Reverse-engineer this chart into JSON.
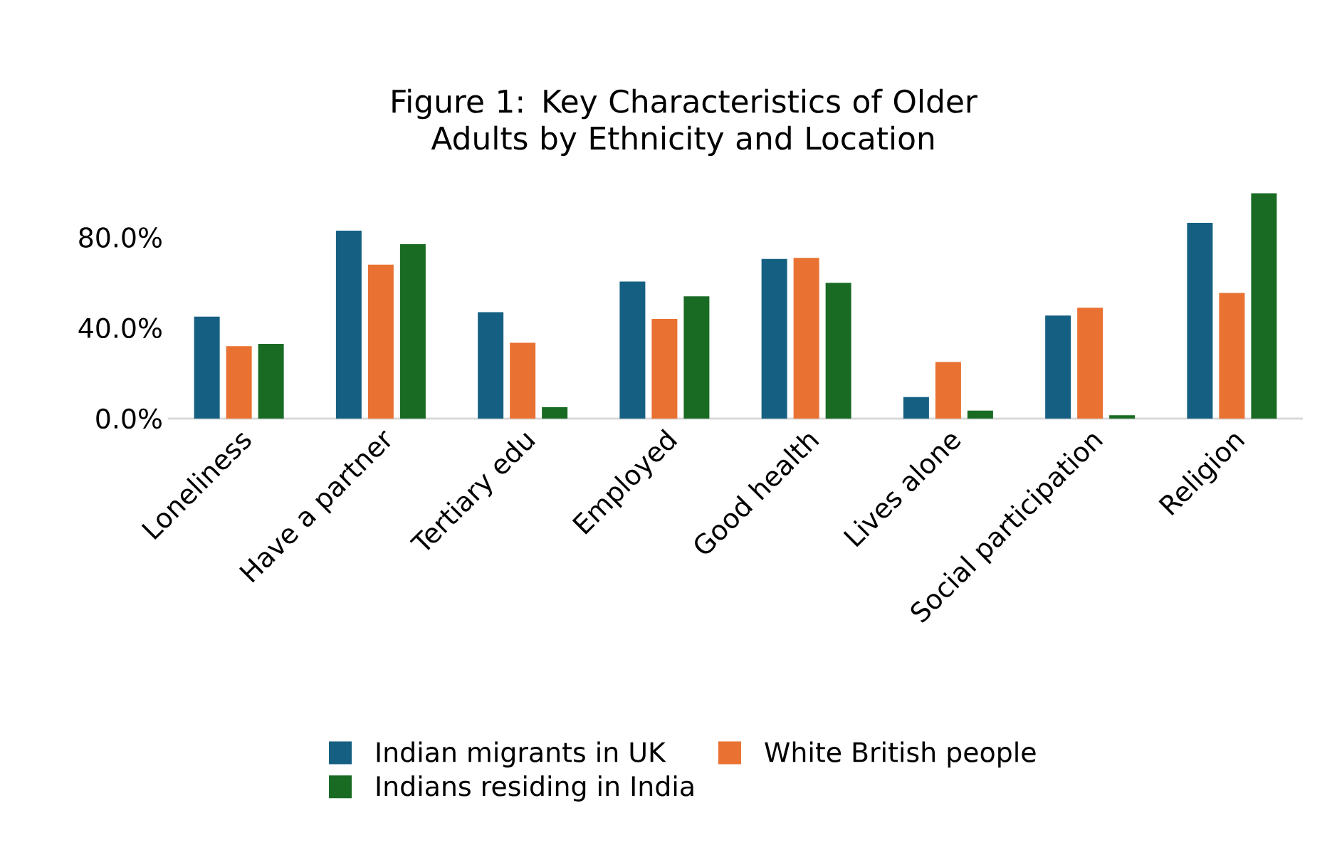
{
  "chart_data": {
    "type": "bar",
    "title": "Figure 1: Key Characteristics of Older Adults by Ethnicity and Location",
    "categories": [
      "Loneliness",
      "Have a partner",
      "Tertiary edu",
      "Employed",
      "Good health",
      "Lives alone",
      "Social participation",
      "Religion"
    ],
    "series": [
      {
        "name": "Indian migrants in UK",
        "color": "#156082",
        "values": [
          45,
          83,
          47,
          60.5,
          70.5,
          9.5,
          45.5,
          86.5
        ]
      },
      {
        "name": "White British people",
        "color": "#e97132",
        "values": [
          32,
          68,
          33.5,
          44,
          71,
          25,
          49,
          55.5
        ]
      },
      {
        "name": "Indians residing in India",
        "color": "#196b24",
        "values": [
          33,
          77,
          5,
          54,
          60,
          3.5,
          1.5,
          99.5
        ]
      }
    ],
    "ylim": [
      0,
      100
    ],
    "yticks": [
      {
        "value": 0,
        "label": "0.0%"
      },
      {
        "value": 40,
        "label": "40.0%"
      },
      {
        "value": 80,
        "label": "80.0%"
      }
    ],
    "legend": "bottom"
  }
}
